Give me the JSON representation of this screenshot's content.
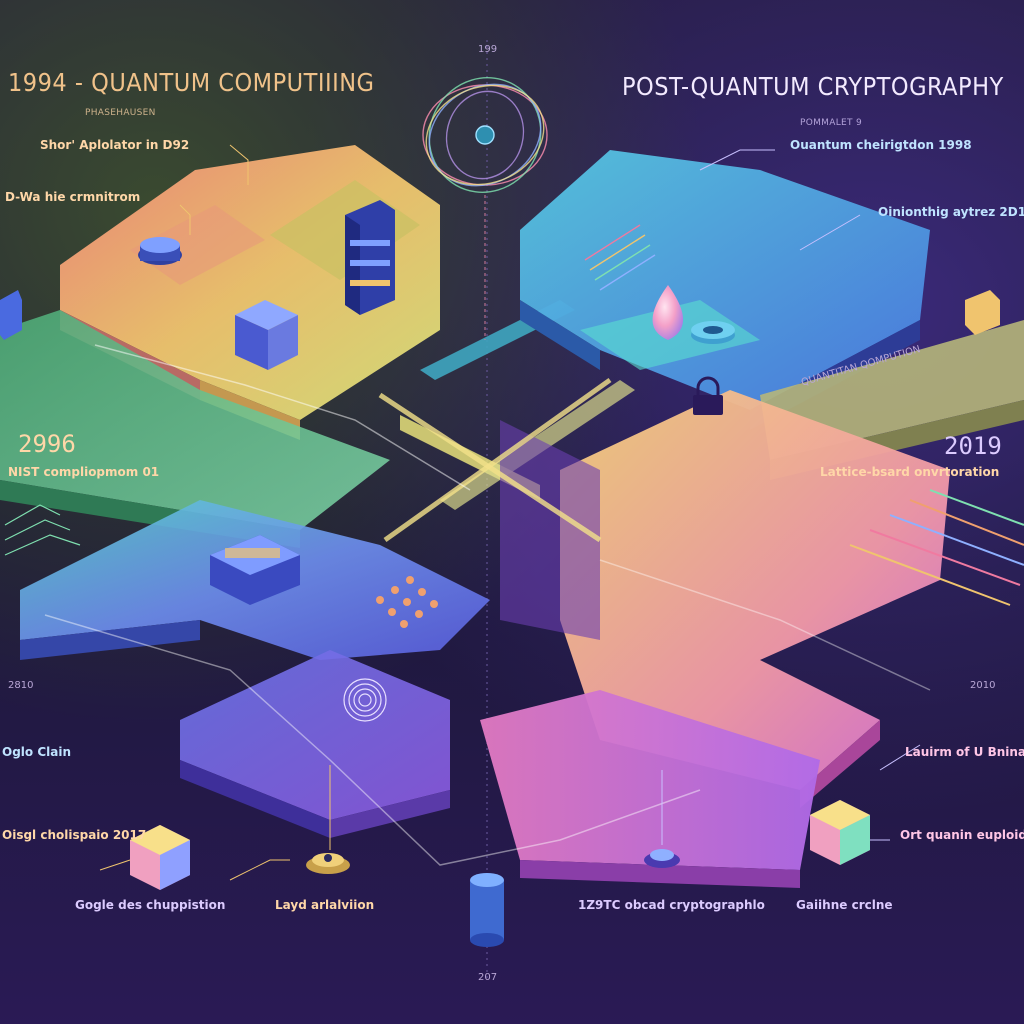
{
  "header": {
    "left_title": "1994 - QUANTUM COMPUTIIING",
    "right_title": "POST-QUANTUM CRYPTOGRAPHY",
    "top_year": "199",
    "bottom_year": "207"
  },
  "left_section": {
    "subheading": "PHASEHAUSEN",
    "shor_label": "Shor' Aplolator in D92",
    "dwave_label": "D-Wa hie crmnitrom",
    "year_1996": "2996",
    "nist_label": "NIST compliopmom 01",
    "year_2010": "2810",
    "oslo_label": "Oglo Clain",
    "event_2017": "Oisgl cholispaio 2017",
    "google_label": "Gogle des chuppistion",
    "layer_label": "Layd arlalviion"
  },
  "right_section": {
    "subheading": "POMMALET 9",
    "quantum_label": "Ouantum cheirigtdon 1998",
    "qkd_label": "Oinionthig aytrez 2D1",
    "year_2019": "2019",
    "lattice_label": "Lattice-bsard onvrtoration",
    "year_2010": "2010",
    "launch_label": "Lauirm of U Bninar",
    "ort_label": "Ort quanin euploid",
    "cbc_label": "1Z9TC obcad cryptographlo",
    "gaming_label": "Gaiihne crclne",
    "banner": "QUANTITAN QOMPUTION"
  },
  "colors": {
    "warm_path": "#f0c46e",
    "cool_path": "#6e8ff0",
    "violet_path": "#8c5ae0",
    "pink_path": "#e27ac2"
  }
}
